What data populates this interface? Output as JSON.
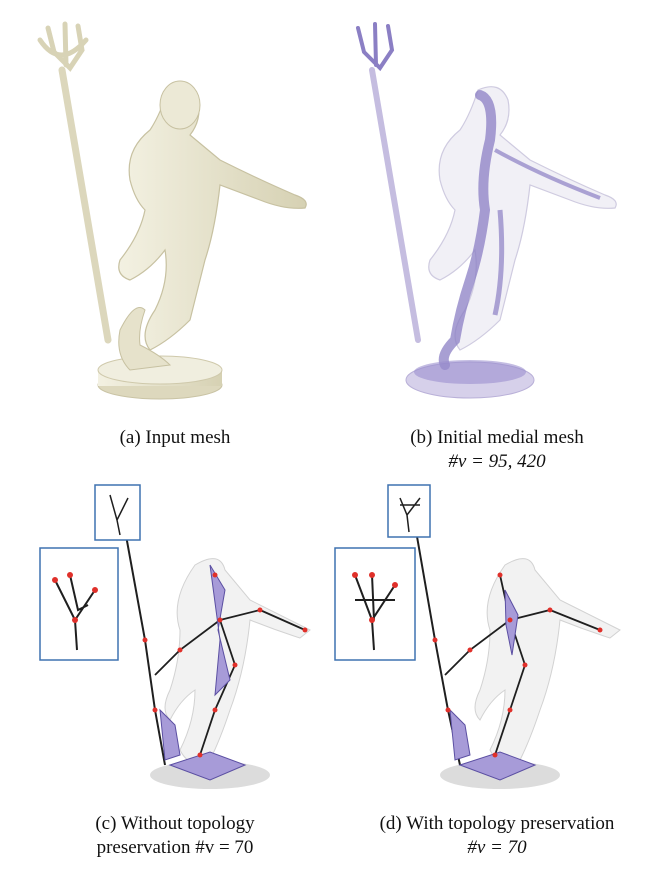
{
  "figure": {
    "panels": [
      {
        "id": "a",
        "caption_line1": "(a) Input mesh",
        "caption_line2": ""
      },
      {
        "id": "b",
        "caption_line1": "(b) Initial medial mesh",
        "caption_line2": "#v = 95, 420"
      },
      {
        "id": "c",
        "caption_line1": "(c) Without topology",
        "caption_line2": "preservation #v = 70"
      },
      {
        "id": "d",
        "caption_line1": "(d) With topology preservation",
        "caption_line2": "#v = 70"
      }
    ],
    "colors": {
      "mesh": "#eeebd8",
      "mesh_shade": "#d7d2b6",
      "medial": "#8b7fc4",
      "skeleton": "#1f1f1f",
      "node": "#e0302a",
      "inset_border": "#3f72b0"
    }
  }
}
